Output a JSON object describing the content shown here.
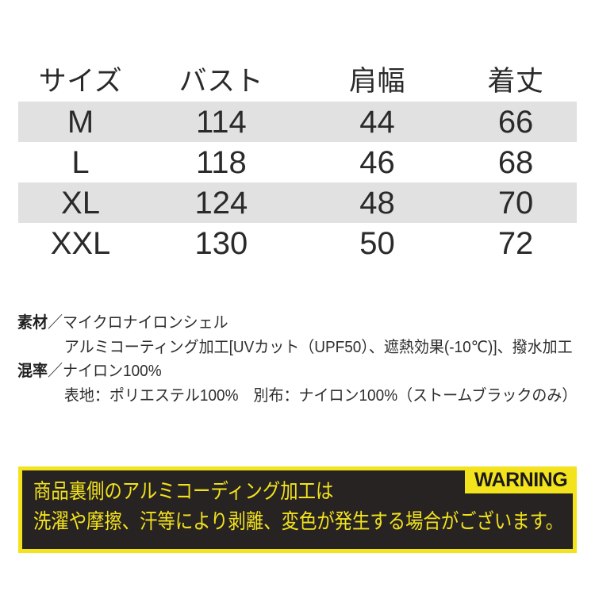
{
  "size_table": {
    "columns": [
      "サイズ",
      "バスト",
      "肩幅",
      "着丈"
    ],
    "rows": [
      [
        "M",
        "114",
        "44",
        "66"
      ],
      [
        "L",
        "118",
        "46",
        "68"
      ],
      [
        "XL",
        "124",
        "48",
        "70"
      ],
      [
        "XXL",
        "130",
        "50",
        "72"
      ]
    ]
  },
  "materials": {
    "material_label": "素材",
    "separator": "／",
    "material_line1": "マイクロナイロンシェル",
    "material_line2": "アルミコーティング加工[UVカット（UPF50）、遮熱効果(-10℃)]、撥水加工",
    "blend_label": "混率",
    "blend_line1": "ナイロン100%",
    "blend_line2": "表地：ポリエステル100%　別布：ナイロン100%（ストームブラックのみ）"
  },
  "warning": {
    "badge": "WARNING",
    "line1": "商品裏側のアルミコーディング加工は",
    "line2": "洗濯や摩擦、汗等により剥離、変色が発生する場合がございます。"
  },
  "colors": {
    "row_stripe": "#e1e1e1",
    "warning_yellow": "#f2e31c",
    "warning_bg": "#282323",
    "text": "#2a2a2a"
  }
}
